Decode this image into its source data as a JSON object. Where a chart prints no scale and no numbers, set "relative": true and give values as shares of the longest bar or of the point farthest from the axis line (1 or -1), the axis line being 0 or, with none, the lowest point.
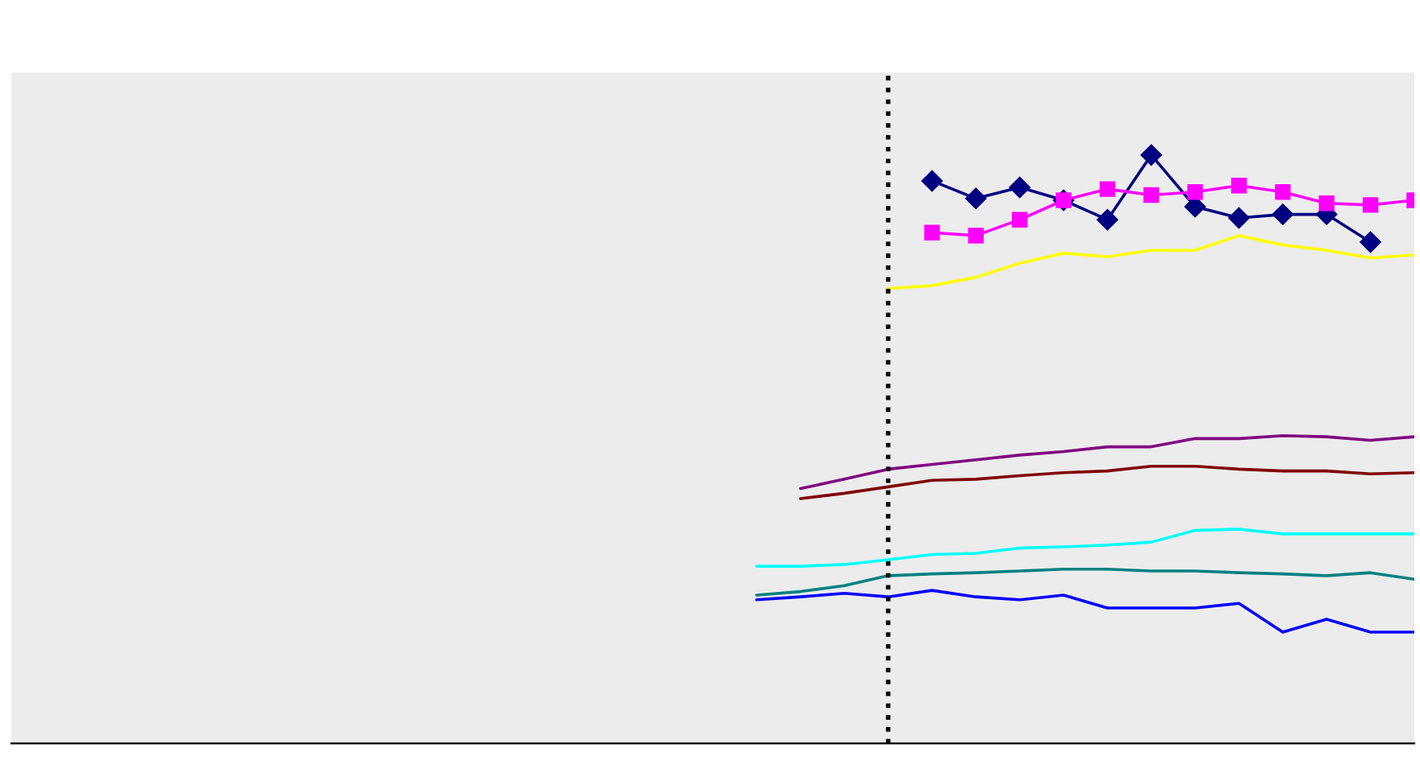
{
  "chart_data": {
    "type": "line",
    "relative": true,
    "categories": [
      null,
      null,
      null,
      null,
      null,
      null,
      null,
      null,
      null,
      null,
      null,
      null,
      null,
      null,
      null,
      null,
      null,
      null,
      null,
      null,
      null,
      null,
      null,
      null,
      null,
      null,
      null,
      null,
      null,
      null,
      null,
      null,
      null
    ],
    "grid": false,
    "legend": false,
    "series": [
      {
        "color": "#000080",
        "marker": "diamond",
        "values": [
          null,
          null,
          null,
          null,
          null,
          null,
          null,
          null,
          null,
          null,
          null,
          null,
          null,
          null,
          null,
          null,
          null,
          null,
          null,
          null,
          null,
          0.956,
          0.926,
          0.945,
          0.923,
          0.89,
          1.0,
          0.912,
          0.893,
          0.899,
          0.899,
          0.852,
          null
        ]
      },
      {
        "color": "#ff00ff",
        "marker": "square",
        "values": [
          null,
          null,
          null,
          null,
          null,
          null,
          null,
          null,
          null,
          null,
          null,
          null,
          null,
          null,
          null,
          null,
          null,
          null,
          null,
          null,
          null,
          0.868,
          0.863,
          0.89,
          0.923,
          0.942,
          0.932,
          0.937,
          0.948,
          0.937,
          0.918,
          0.915,
          0.923
        ]
      },
      {
        "color": "#ffff00",
        "values": [
          null,
          null,
          null,
          null,
          null,
          null,
          null,
          null,
          null,
          null,
          null,
          null,
          null,
          null,
          null,
          null,
          null,
          null,
          null,
          null,
          0.773,
          0.778,
          0.792,
          0.816,
          0.833,
          0.827,
          0.838,
          0.838,
          0.863,
          0.847,
          0.838,
          0.825,
          0.83
        ]
      },
      {
        "color": "#800080",
        "values": [
          null,
          null,
          null,
          null,
          null,
          null,
          null,
          null,
          null,
          null,
          null,
          null,
          null,
          null,
          null,
          null,
          null,
          null,
          0.433,
          0.449,
          0.466,
          0.474,
          0.482,
          0.49,
          0.496,
          0.504,
          0.504,
          0.518,
          0.518,
          0.523,
          0.521,
          0.515,
          0.521
        ]
      },
      {
        "color": "#800000",
        "values": [
          null,
          null,
          null,
          null,
          null,
          null,
          null,
          null,
          null,
          null,
          null,
          null,
          null,
          null,
          null,
          null,
          null,
          null,
          0.416,
          0.425,
          0.436,
          0.447,
          0.449,
          0.455,
          0.46,
          0.463,
          0.471,
          0.471,
          0.466,
          0.463,
          0.463,
          0.458,
          0.46
        ]
      },
      {
        "color": "#00ffff",
        "values": [
          null,
          null,
          null,
          null,
          null,
          null,
          null,
          null,
          null,
          null,
          null,
          null,
          null,
          null,
          null,
          null,
          null,
          0.301,
          0.301,
          0.304,
          0.312,
          0.321,
          0.323,
          0.332,
          0.334,
          0.337,
          0.342,
          0.362,
          0.364,
          0.356,
          0.356,
          0.356,
          0.356
        ]
      },
      {
        "color": "#008080",
        "values": [
          null,
          null,
          null,
          null,
          null,
          null,
          null,
          null,
          null,
          null,
          null,
          null,
          null,
          null,
          null,
          null,
          null,
          0.252,
          0.258,
          0.268,
          0.285,
          0.288,
          0.29,
          0.293,
          0.296,
          0.296,
          0.293,
          0.293,
          0.29,
          0.288,
          0.285,
          0.29,
          0.279
        ]
      },
      {
        "color": "#0000ff",
        "values": [
          null,
          null,
          null,
          null,
          null,
          null,
          null,
          null,
          null,
          null,
          null,
          null,
          null,
          null,
          null,
          null,
          null,
          0.244,
          0.249,
          0.255,
          0.249,
          0.26,
          0.249,
          0.244,
          0.252,
          0.23,
          0.23,
          0.23,
          0.238,
          0.189,
          0.211,
          0.189,
          0.189
        ]
      }
    ]
  }
}
